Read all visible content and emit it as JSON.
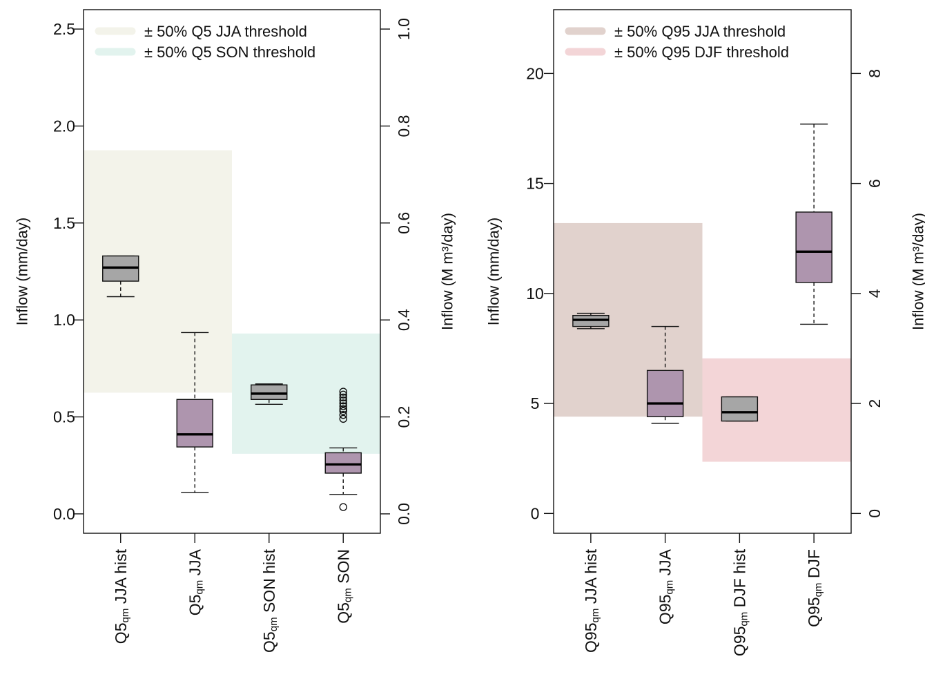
{
  "chart_data": [
    {
      "type": "boxplot",
      "ylabel": "Inflow (mm/day)",
      "y2label": "Inflow (M m³/day)",
      "ylim": [
        -0.1,
        2.6
      ],
      "y2lim": [
        -0.04,
        1.04
      ],
      "yticks": [
        "0.0",
        "0.5",
        "1.0",
        "1.5",
        "2.0",
        "2.5"
      ],
      "y2ticks": [
        "0.0",
        "0.2",
        "0.4",
        "0.6",
        "0.8",
        "1.0"
      ],
      "y2_per_y": 0.4,
      "legend": [
        {
          "label": "± 50% Q5 JJA threshold",
          "color": "#f3f3ea"
        },
        {
          "label": "± 50% Q5 SON threshold",
          "color": "#e2f3ee"
        }
      ],
      "bands": [
        {
          "from_cat": 0,
          "to_cat": 2,
          "low": 0.625,
          "high": 1.875,
          "color": "#f3f3ea"
        },
        {
          "from_cat": 2,
          "to_cat": 4,
          "low": 0.31,
          "high": 0.93,
          "color": "#e2f3ee"
        }
      ],
      "categories": [
        {
          "main": "Q5",
          "sub": "qm",
          "rest": " JJA hist"
        },
        {
          "main": "Q5",
          "sub": "qm",
          "rest": " JJA"
        },
        {
          "main": "Q5",
          "sub": "qm",
          "rest": " SON hist"
        },
        {
          "main": "Q5",
          "sub": "qm",
          "rest": " SON"
        }
      ],
      "boxes": [
        {
          "min": 1.12,
          "q1": 1.2,
          "median": 1.27,
          "q3": 1.33,
          "max": 1.33,
          "color": "#a6a6a6",
          "outliers": []
        },
        {
          "min": 0.11,
          "q1": 0.345,
          "median": 0.41,
          "q3": 0.59,
          "max": 0.935,
          "color": "#ae95ae",
          "outliers": []
        },
        {
          "min": 0.565,
          "q1": 0.59,
          "median": 0.62,
          "q3": 0.665,
          "max": 0.67,
          "color": "#a6a6a6",
          "outliers": []
        },
        {
          "min": 0.1,
          "q1": 0.21,
          "median": 0.255,
          "q3": 0.315,
          "max": 0.34,
          "color": "#ae95ae",
          "outliers": [
            0.035,
            0.49,
            0.51,
            0.53,
            0.54,
            0.555,
            0.57,
            0.585,
            0.6,
            0.615,
            0.63
          ]
        }
      ]
    },
    {
      "type": "boxplot",
      "ylabel": "Inflow (mm/day)",
      "y2label": "Inflow (M m³/day)",
      "ylim": [
        -0.9,
        22.9
      ],
      "y2lim": [
        -0.36,
        9.16
      ],
      "yticks": [
        "0",
        "5",
        "10",
        "15",
        "20"
      ],
      "y2ticks": [
        "0",
        "2",
        "4",
        "6",
        "8"
      ],
      "y2_per_y": 0.4,
      "legend": [
        {
          "label": "± 50% Q95 JJA threshold",
          "color": "#e1d2cd"
        },
        {
          "label": "± 50% Q95 DJF threshold",
          "color": "#f3d5d7"
        }
      ],
      "bands": [
        {
          "from_cat": 0,
          "to_cat": 2,
          "low": 4.4,
          "high": 13.2,
          "color": "#e1d2cd"
        },
        {
          "from_cat": 2,
          "to_cat": 4,
          "low": 2.35,
          "high": 7.05,
          "color": "#f3d5d7"
        }
      ],
      "categories": [
        {
          "main": "Q95",
          "sub": "qm",
          "rest": " JJA hist"
        },
        {
          "main": "Q95",
          "sub": "qm",
          "rest": " JJA"
        },
        {
          "main": "Q95",
          "sub": "qm",
          "rest": " DJF hist"
        },
        {
          "main": "Q95",
          "sub": "qm",
          "rest": " DJF"
        }
      ],
      "boxes": [
        {
          "min": 8.4,
          "q1": 8.5,
          "median": 8.8,
          "q3": 9.0,
          "max": 9.1,
          "color": "#a6a6a6",
          "outliers": []
        },
        {
          "min": 4.1,
          "q1": 4.4,
          "median": 5.0,
          "q3": 6.5,
          "max": 8.5,
          "color": "#ae95ae",
          "outliers": []
        },
        {
          "min": 4.2,
          "q1": 4.2,
          "median": 4.6,
          "q3": 5.3,
          "max": 5.3,
          "color": "#a6a6a6",
          "outliers": []
        },
        {
          "min": 8.6,
          "q1": 10.5,
          "median": 11.9,
          "q3": 13.7,
          "max": 17.7,
          "color": "#ae95ae",
          "outliers": []
        }
      ]
    }
  ]
}
